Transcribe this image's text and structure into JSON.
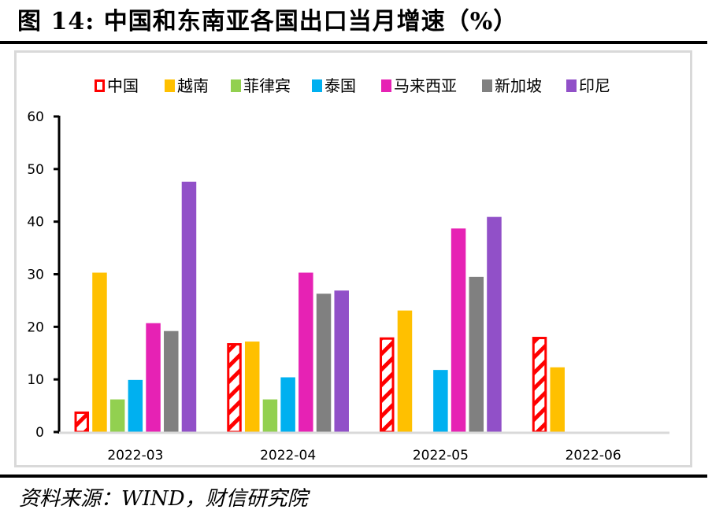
{
  "header": {
    "title": "图 14:  中国和东南亚各国出口当月增速（%）"
  },
  "footer": {
    "source": "资料来源：WIND，财信研究院"
  },
  "chart_data": {
    "type": "bar",
    "title": "图 14:  中国和东南亚各国出口当月增速（%）",
    "xlabel": "",
    "ylabel": "",
    "categories": [
      "2022-03",
      "2022-04",
      "2022-05",
      "2022-06"
    ],
    "ylim": [
      0,
      60
    ],
    "yticks": [
      0,
      10,
      20,
      30,
      40,
      50,
      60
    ],
    "ytick_labels": [
      "0",
      "10",
      "20",
      "30",
      "40",
      "50",
      "60"
    ],
    "grid": false,
    "legend_position": "top",
    "series": [
      {
        "name": "中国",
        "color": "#ff0000",
        "pattern": "hatched",
        "values": [
          3.9,
          16.9,
          18.0,
          18.1
        ]
      },
      {
        "name": "越南",
        "color": "#ffc000",
        "values": [
          30.3,
          17.2,
          23.1,
          12.3
        ]
      },
      {
        "name": "菲律宾",
        "color": "#92d050",
        "values": [
          6.2,
          6.2,
          null,
          null
        ]
      },
      {
        "name": "泰国",
        "color": "#00b0f0",
        "values": [
          9.9,
          10.4,
          11.8,
          null
        ]
      },
      {
        "name": "马来西亚",
        "color": "#e622b4",
        "values": [
          20.7,
          30.3,
          38.7,
          null
        ]
      },
      {
        "name": "新加坡",
        "color": "#808080",
        "values": [
          19.2,
          26.3,
          29.5,
          null
        ]
      },
      {
        "name": "印尼",
        "color": "#9150c8",
        "values": [
          47.6,
          26.9,
          40.9,
          null
        ]
      }
    ]
  }
}
